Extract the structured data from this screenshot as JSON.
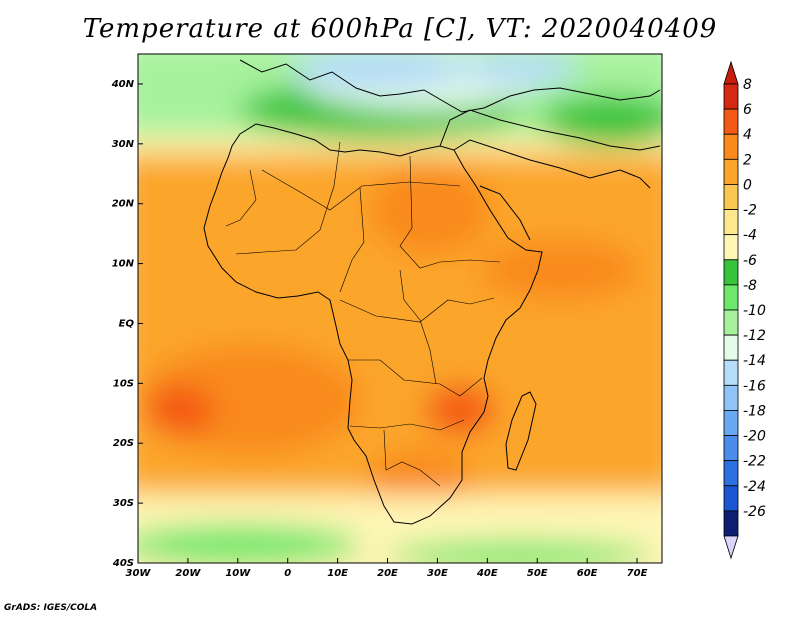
{
  "title": "Temperature at 600hPa [C], VT: 2020040409",
  "credit": "GrADS: IGES/COLA",
  "map": {
    "lon_range": [
      -30,
      75
    ],
    "lat_range": [
      -40,
      45
    ],
    "lon_ticks": [
      {
        "value": -30,
        "label": "30W"
      },
      {
        "value": -20,
        "label": "20W"
      },
      {
        "value": -10,
        "label": "10W"
      },
      {
        "value": 0,
        "label": "0"
      },
      {
        "value": 10,
        "label": "10E"
      },
      {
        "value": 20,
        "label": "20E"
      },
      {
        "value": 30,
        "label": "30E"
      },
      {
        "value": 40,
        "label": "40E"
      },
      {
        "value": 50,
        "label": "50E"
      },
      {
        "value": 60,
        "label": "60E"
      },
      {
        "value": 70,
        "label": "70E"
      }
    ],
    "lat_ticks": [
      {
        "value": 40,
        "label": "40N"
      },
      {
        "value": 30,
        "label": "30N"
      },
      {
        "value": 20,
        "label": "20N"
      },
      {
        "value": 10,
        "label": "10N"
      },
      {
        "value": 0,
        "label": "EQ"
      },
      {
        "value": -10,
        "label": "10S"
      },
      {
        "value": -20,
        "label": "20S"
      },
      {
        "value": -30,
        "label": "30S"
      },
      {
        "value": -40,
        "label": "40S"
      }
    ]
  },
  "colorbar": {
    "labels": [
      "8",
      "6",
      "4",
      "2",
      "0",
      "-2",
      "-4",
      "-6",
      "-8",
      "-10",
      "-12",
      "-14",
      "-16",
      "-18",
      "-20",
      "-22",
      "-24",
      "-26"
    ],
    "colors": [
      "#d42a12",
      "#f45a16",
      "#f98a1c",
      "#fba52b",
      "#fcc653",
      "#fde88e",
      "#fef6b5",
      "#37c43b",
      "#6ee86c",
      "#a6f29c",
      "#e3fbe7",
      "#b5dcf9",
      "#8ec4f6",
      "#6aa8f1",
      "#4a8dea",
      "#2f70e0",
      "#1a56d3",
      "#0c1f72"
    ],
    "top_arrow_color": "#c91c0c",
    "bottom_arrow_color": "#dcd4fa"
  }
}
